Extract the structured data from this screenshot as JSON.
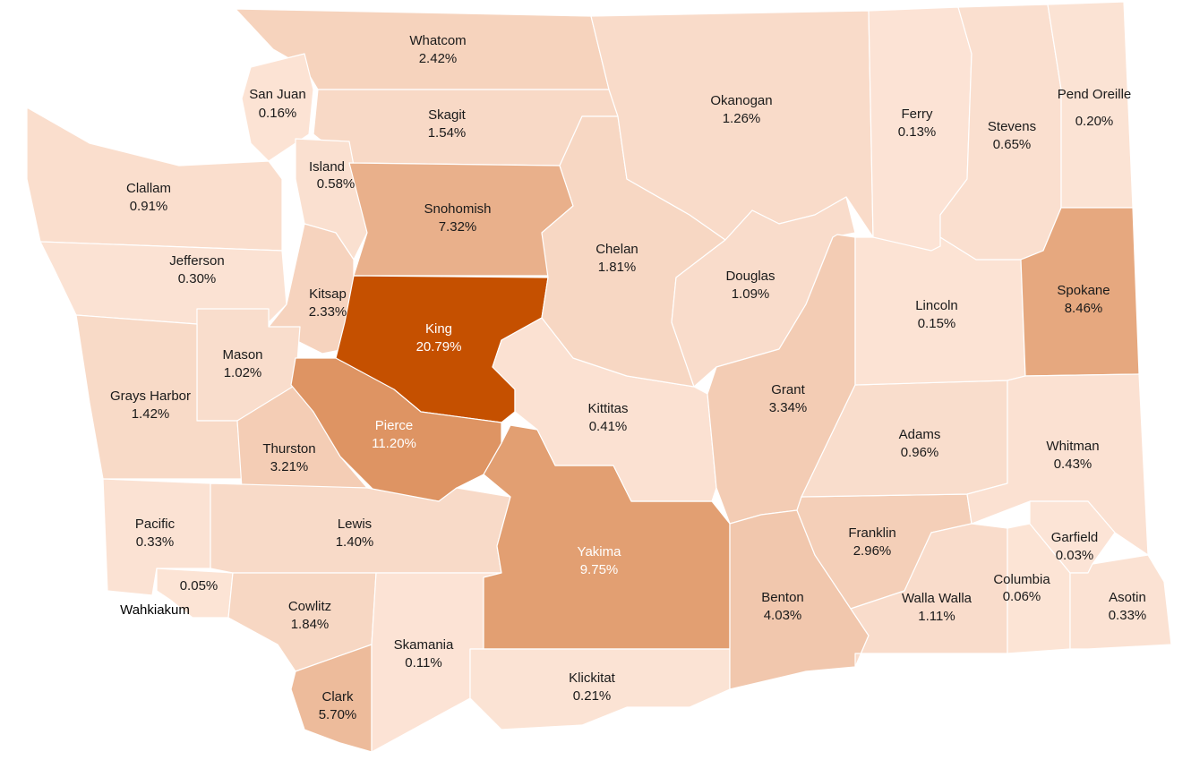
{
  "map": {
    "counties": [
      {
        "name": "Whatcom",
        "value": 2.42,
        "value_label": "2.42%"
      },
      {
        "name": "San Juan",
        "value": 0.16,
        "value_label": "0.16%"
      },
      {
        "name": "Skagit",
        "value": 1.54,
        "value_label": "1.54%"
      },
      {
        "name": "Island",
        "value": 0.58,
        "value_label": "0.58%"
      },
      {
        "name": "Clallam",
        "value": 0.91,
        "value_label": "0.91%"
      },
      {
        "name": "Jefferson",
        "value": 0.3,
        "value_label": "0.30%"
      },
      {
        "name": "Snohomish",
        "value": 7.32,
        "value_label": "7.32%"
      },
      {
        "name": "Kitsap",
        "value": 2.33,
        "value_label": "2.33%"
      },
      {
        "name": "King",
        "value": 20.79,
        "value_label": "20.79%"
      },
      {
        "name": "Mason",
        "value": 1.02,
        "value_label": "1.02%"
      },
      {
        "name": "Grays Harbor",
        "value": 1.42,
        "value_label": "1.42%"
      },
      {
        "name": "Thurston",
        "value": 3.21,
        "value_label": "3.21%"
      },
      {
        "name": "Pierce",
        "value": 11.2,
        "value_label": "11.20%"
      },
      {
        "name": "Pacific",
        "value": 0.33,
        "value_label": "0.33%"
      },
      {
        "name": "Wahkiakum",
        "value": 0.05,
        "value_label": "0.05%"
      },
      {
        "name": "Lewis",
        "value": 1.4,
        "value_label": "1.40%"
      },
      {
        "name": "Cowlitz",
        "value": 1.84,
        "value_label": "1.84%"
      },
      {
        "name": "Clark",
        "value": 5.7,
        "value_label": "5.70%"
      },
      {
        "name": "Skamania",
        "value": 0.11,
        "value_label": "0.11%"
      },
      {
        "name": "Yakima",
        "value": 9.75,
        "value_label": "9.75%"
      },
      {
        "name": "Klickitat",
        "value": 0.21,
        "value_label": "0.21%"
      },
      {
        "name": "Kittitas",
        "value": 0.41,
        "value_label": "0.41%"
      },
      {
        "name": "Chelan",
        "value": 1.81,
        "value_label": "1.81%"
      },
      {
        "name": "Okanogan",
        "value": 1.26,
        "value_label": "1.26%"
      },
      {
        "name": "Douglas",
        "value": 1.09,
        "value_label": "1.09%"
      },
      {
        "name": "Grant",
        "value": 3.34,
        "value_label": "3.34%"
      },
      {
        "name": "Benton",
        "value": 4.03,
        "value_label": "4.03%"
      },
      {
        "name": "Franklin",
        "value": 2.96,
        "value_label": "2.96%"
      },
      {
        "name": "Adams",
        "value": 0.96,
        "value_label": "0.96%"
      },
      {
        "name": "Lincoln",
        "value": 0.15,
        "value_label": "0.15%"
      },
      {
        "name": "Ferry",
        "value": 0.13,
        "value_label": "0.13%"
      },
      {
        "name": "Stevens",
        "value": 0.65,
        "value_label": "0.65%"
      },
      {
        "name": "Pend Oreille",
        "value": 0.2,
        "value_label": "0.20%"
      },
      {
        "name": "Spokane",
        "value": 8.46,
        "value_label": "8.46%"
      },
      {
        "name": "Whitman",
        "value": 0.43,
        "value_label": "0.43%"
      },
      {
        "name": "Walla Walla",
        "value": 1.11,
        "value_label": "1.11%"
      },
      {
        "name": "Columbia",
        "value": 0.06,
        "value_label": "0.06%"
      },
      {
        "name": "Garfield",
        "value": 0.03,
        "value_label": "0.03%"
      },
      {
        "name": "Asotin",
        "value": 0.33,
        "value_label": "0.33%"
      }
    ],
    "color_low": "#fce4d6",
    "color_high": "#c55000"
  }
}
